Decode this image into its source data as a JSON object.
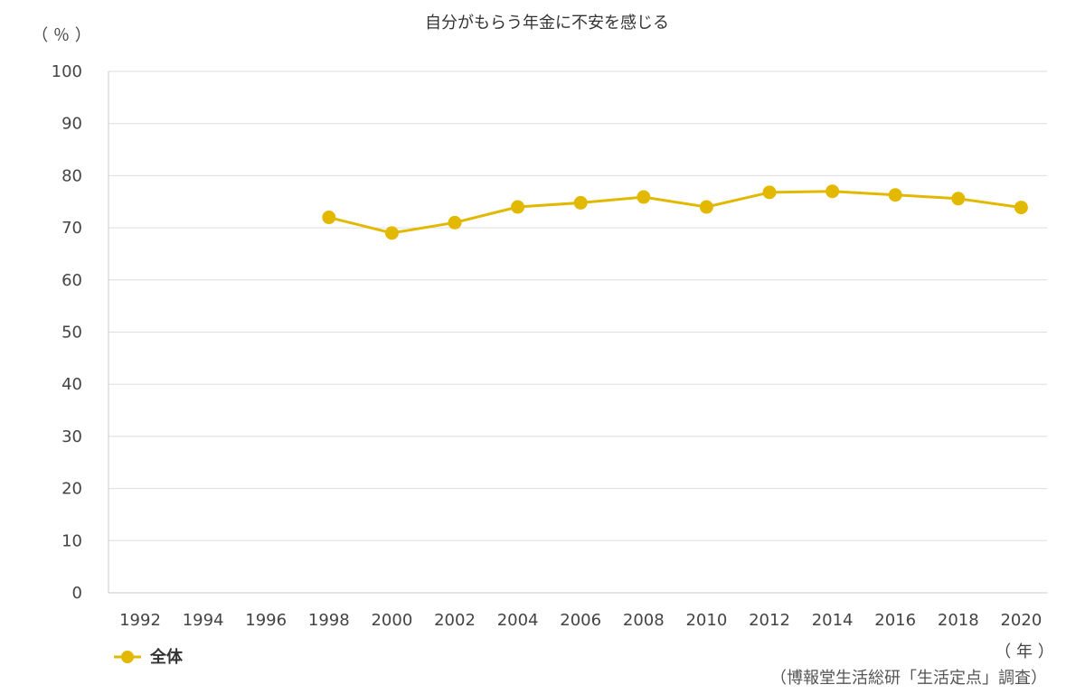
{
  "chart_data": {
    "type": "line",
    "title": "自分がもらう年金に不安を感じる",
    "ylabel": "（ ％ ）",
    "xlabel": "（ 年 ）",
    "ylim": [
      0,
      100
    ],
    "y_ticks": [
      0,
      10,
      20,
      30,
      40,
      50,
      60,
      70,
      80,
      90,
      100
    ],
    "categories": [
      "1992",
      "1994",
      "1996",
      "1998",
      "2000",
      "2002",
      "2004",
      "2006",
      "2008",
      "2010",
      "2012",
      "2014",
      "2016",
      "2018",
      "2020"
    ],
    "series": [
      {
        "name": "全体",
        "color": "#E2B900",
        "values": [
          null,
          null,
          null,
          72,
          69,
          71,
          74,
          74.8,
          75.9,
          74,
          76.8,
          77,
          76.3,
          75.6,
          73.9
        ]
      }
    ],
    "grid": "horizontal",
    "legend": "bottom-left",
    "source": "（博報堂生活総研「生活定点」調査）"
  }
}
